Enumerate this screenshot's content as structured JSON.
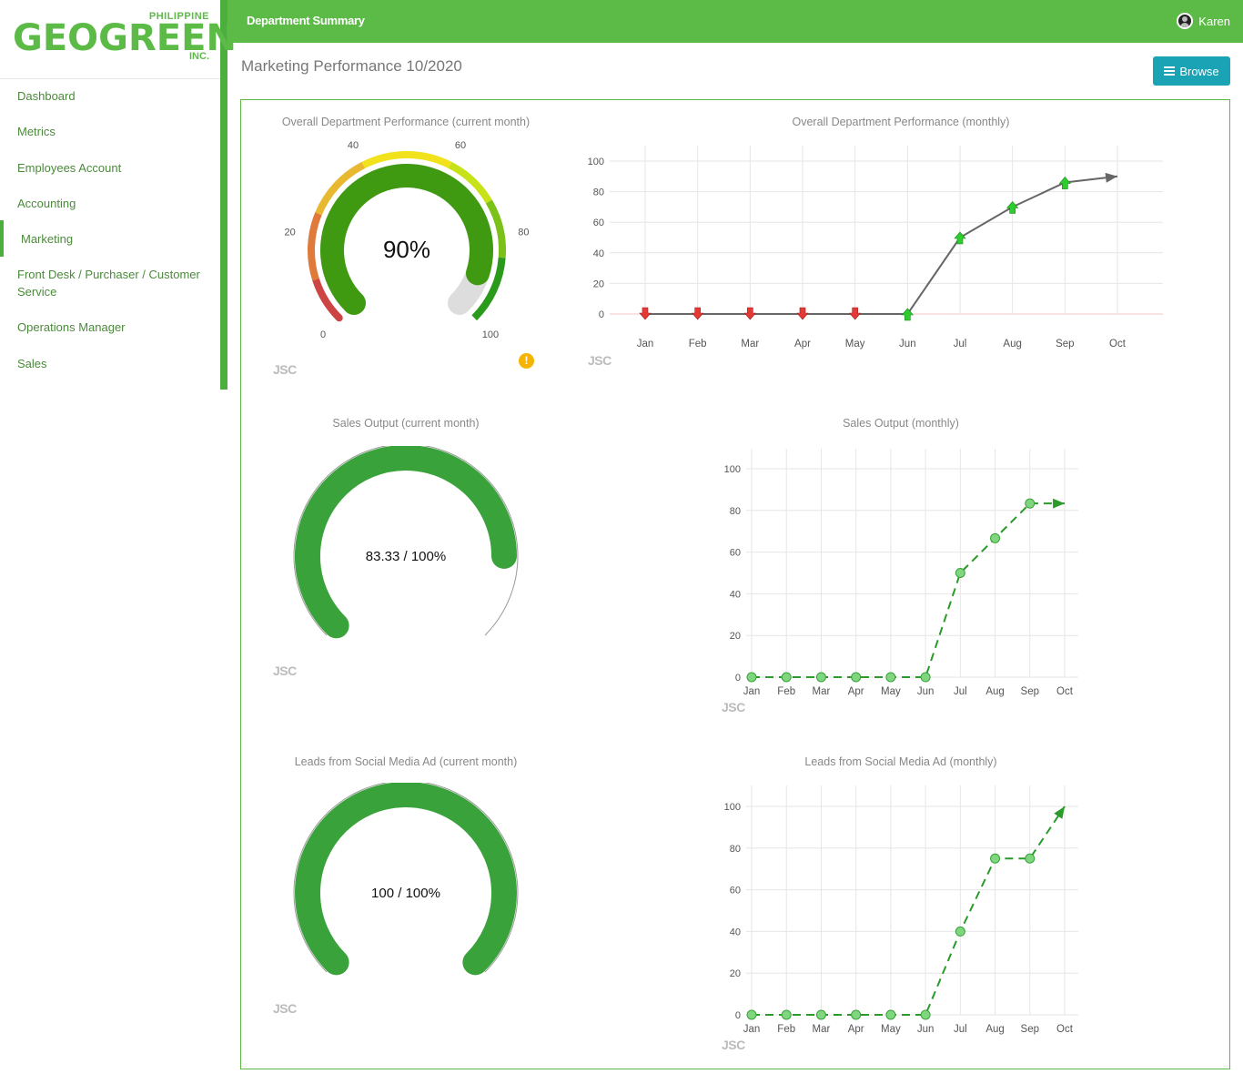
{
  "logo": {
    "top": "PHILIPPINE",
    "name": "GEOGREEN",
    "suffix": "INC."
  },
  "nav": [
    "Dashboard",
    "Metrics",
    "Employees Account",
    "Accounting",
    "Marketing",
    "Front Desk / Purchaser / Customer Service",
    "Operations Manager",
    "Sales"
  ],
  "topbar": {
    "title": "Department Summary",
    "user": "Karen"
  },
  "page": {
    "title": "Marketing Performance 10/2020",
    "browse_label": "Browse",
    "watermark": "JSC",
    "warning_glyph": "!"
  },
  "colors": {
    "brand": "#5cba47",
    "accent": "#1aa3b5",
    "gauge_green": "#3aa23a",
    "down": "#e53935",
    "up": "#2ecc2e"
  },
  "chart_data": [
    {
      "type": "gauge",
      "title": "Overall Department Performance (current month)",
      "value": 90,
      "value_label": "90%",
      "range": [
        0,
        100
      ],
      "ticks": [
        "0",
        "20",
        "40",
        "60",
        "80",
        "100"
      ]
    },
    {
      "type": "line",
      "title": "Overall Department Performance (monthly)",
      "categories": [
        "Jan",
        "Feb",
        "Mar",
        "Apr",
        "May",
        "Jun",
        "Jul",
        "Aug",
        "Sep",
        "Oct"
      ],
      "values": [
        0,
        0,
        0,
        0,
        0,
        0,
        50,
        70,
        86,
        90
      ],
      "markers": [
        "down",
        "down",
        "down",
        "down",
        "down",
        "up",
        "up",
        "up",
        "up",
        "arrow"
      ],
      "ylim": [
        0,
        100
      ],
      "yticks": [
        "0",
        "20",
        "40",
        "60",
        "80",
        "100"
      ]
    },
    {
      "type": "gauge",
      "title": "Sales Output (current month)",
      "value": 83.33,
      "value_label": "83.33 / 100%",
      "range": [
        0,
        100
      ]
    },
    {
      "type": "line",
      "title": "Sales Output (monthly)",
      "categories": [
        "Jan",
        "Feb",
        "Mar",
        "Apr",
        "May",
        "Jun",
        "Jul",
        "Aug",
        "Sep",
        "Oct"
      ],
      "values": [
        0,
        0,
        0,
        0,
        0,
        0,
        50,
        66.67,
        83.33,
        83.33
      ],
      "style": "dashed",
      "ylim": [
        0,
        100
      ],
      "yticks": [
        "0",
        "20",
        "40",
        "60",
        "80",
        "100"
      ]
    },
    {
      "type": "gauge",
      "title": "Leads from Social Media Ad (current month)",
      "value": 100,
      "value_label": "100 / 100%",
      "range": [
        0,
        100
      ]
    },
    {
      "type": "line",
      "title": "Leads from Social Media Ad (monthly)",
      "categories": [
        "Jan",
        "Feb",
        "Mar",
        "Apr",
        "May",
        "Jun",
        "Jul",
        "Aug",
        "Sep",
        "Oct"
      ],
      "values": [
        0,
        0,
        0,
        0,
        0,
        0,
        40,
        75,
        75,
        100
      ],
      "style": "dashed",
      "ylim": [
        0,
        100
      ],
      "yticks": [
        "0",
        "20",
        "40",
        "60",
        "80",
        "100"
      ]
    }
  ]
}
